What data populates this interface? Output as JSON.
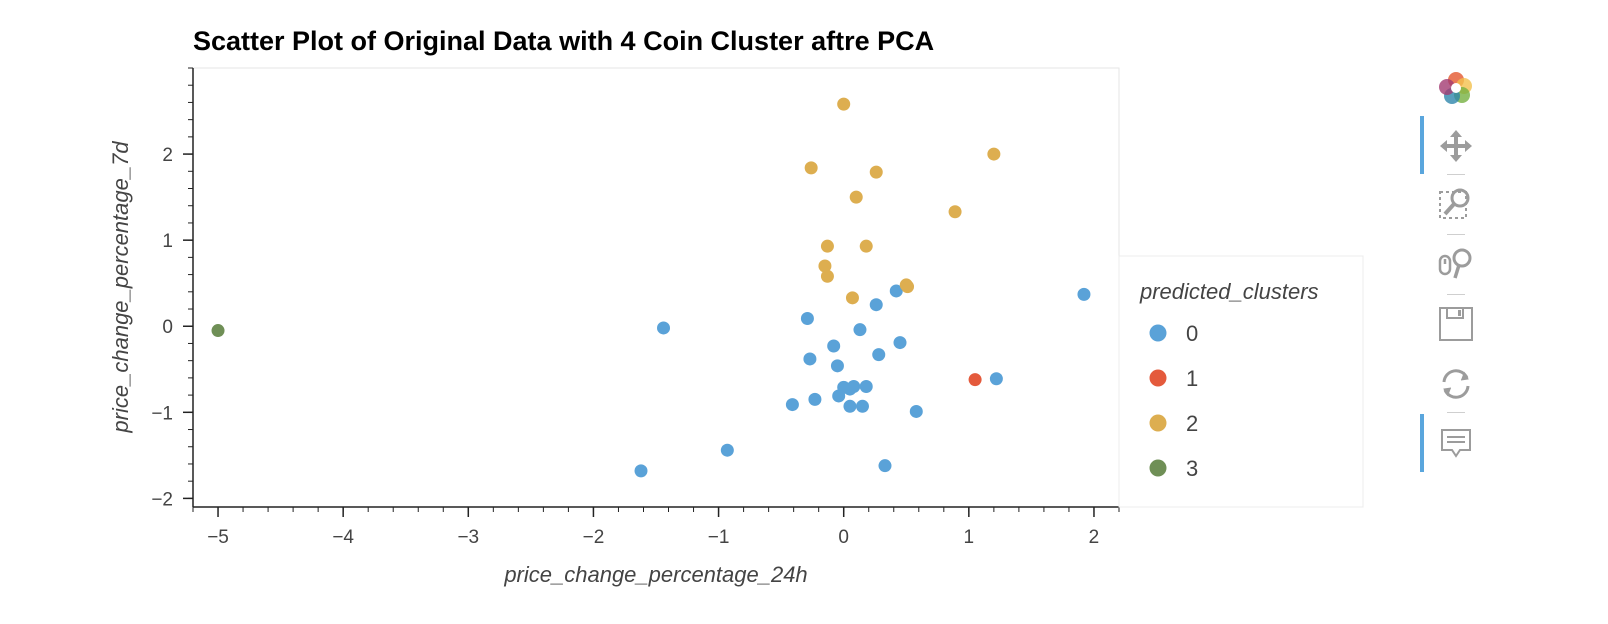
{
  "chart_data": {
    "type": "scatter",
    "title": "Scatter Plot of Original Data with 4 Coin Cluster aftre PCA",
    "xlabel": "price_change_percentage_24h",
    "ylabel": "price_change_percentage_7d",
    "xlim": [
      -5.2,
      2.2
    ],
    "ylim": [
      -2.1,
      3.0
    ],
    "xticks": [
      -5,
      -4,
      -3,
      -2,
      -1,
      0,
      1,
      2
    ],
    "yticks": [
      -2,
      -1,
      0,
      1,
      2
    ],
    "xtick_labels": [
      "−5",
      "−4",
      "−3",
      "−2",
      "−1",
      "0",
      "1",
      "2"
    ],
    "ytick_labels": [
      "−2",
      "−1",
      "0",
      "1",
      "2"
    ],
    "grid": false,
    "legend": {
      "title": "predicted_clusters",
      "placement": "right"
    },
    "series": [
      {
        "name": "0",
        "color": "#5aa2d8",
        "points": [
          [
            -1.44,
            -0.02
          ],
          [
            -0.29,
            0.09
          ],
          [
            0.26,
            0.25
          ],
          [
            0.42,
            0.41
          ],
          [
            0.13,
            -0.04
          ],
          [
            1.92,
            0.37
          ],
          [
            -0.08,
            -0.23
          ],
          [
            0.45,
            -0.19
          ],
          [
            -0.27,
            -0.38
          ],
          [
            0.28,
            -0.33
          ],
          [
            -0.05,
            -0.46
          ],
          [
            1.22,
            -0.61
          ],
          [
            0.0,
            -0.71
          ],
          [
            0.08,
            -0.7
          ],
          [
            0.18,
            -0.7
          ],
          [
            0.05,
            -0.73
          ],
          [
            -0.04,
            -0.81
          ],
          [
            -0.23,
            -0.85
          ],
          [
            -0.41,
            -0.91
          ],
          [
            0.05,
            -0.93
          ],
          [
            0.15,
            -0.93
          ],
          [
            0.58,
            -0.99
          ],
          [
            -0.93,
            -1.44
          ],
          [
            0.33,
            -1.62
          ],
          [
            -1.62,
            -1.68
          ]
        ]
      },
      {
        "name": "1",
        "color": "#e45a3c",
        "points": [
          [
            1.05,
            -0.62
          ]
        ]
      },
      {
        "name": "2",
        "color": "#ddae50",
        "points": [
          [
            0.0,
            2.58
          ],
          [
            -0.26,
            1.84
          ],
          [
            0.26,
            1.79
          ],
          [
            1.2,
            2.0
          ],
          [
            0.1,
            1.5
          ],
          [
            0.89,
            1.33
          ],
          [
            -0.13,
            0.93
          ],
          [
            0.18,
            0.93
          ],
          [
            -0.15,
            0.7
          ],
          [
            -0.13,
            0.58
          ],
          [
            0.5,
            0.48
          ],
          [
            0.51,
            0.46
          ],
          [
            0.07,
            0.33
          ]
        ]
      },
      {
        "name": "3",
        "color": "#6f8f56",
        "points": [
          [
            -5.0,
            -0.05
          ]
        ]
      }
    ]
  },
  "toolbar": {
    "tools": [
      "bokeh-logo-icon",
      "pan-icon",
      "box-zoom-icon",
      "wheel-zoom-icon",
      "save-icon",
      "reset-icon",
      "hover-icon"
    ]
  }
}
